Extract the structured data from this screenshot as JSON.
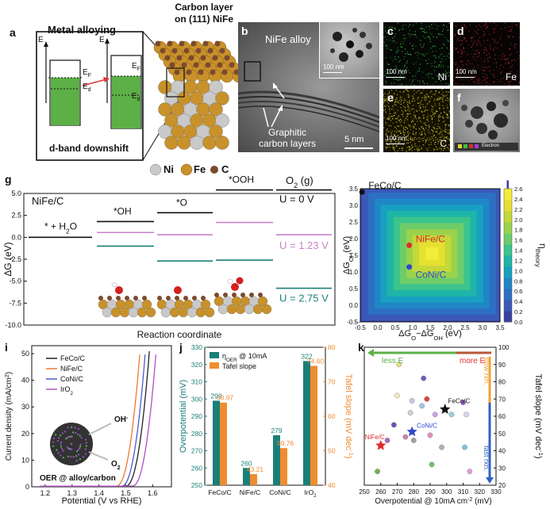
{
  "panels": {
    "a": {
      "letter": "a",
      "title": "Metal alloying",
      "axis_e": "E",
      "ef": "E",
      "ef_sub": "F",
      "ed": "E",
      "ed_sub": "d",
      "caption": "d-band downshift",
      "carbon_title_1": "Carbon layer",
      "carbon_title_2": "on (111) NiFe",
      "legend": {
        "ni": "Ni",
        "fe": "Fe",
        "c": "C"
      }
    },
    "b": {
      "letter": "b",
      "label_alloy": "NiFe alloy",
      "label_layers_1": "Graphitic",
      "label_layers_2": "carbon layers",
      "scale": "5 nm",
      "inset_scale": "100 nm"
    },
    "c": {
      "letter": "c",
      "element": "Ni",
      "scale": "100 nm"
    },
    "d": {
      "letter": "d",
      "element": "Fe",
      "scale": "100 nm"
    },
    "e": {
      "letter": "e",
      "element": "C",
      "scale": "100 nm"
    },
    "f": {
      "letter": "f",
      "legend_text": "Electron",
      "scale": "100 nm"
    },
    "g": {
      "letter": "g"
    },
    "h": {
      "letter": "h"
    },
    "i": {
      "letter": "i",
      "annotation_oh": "OH",
      "annotation_oh_sup": "-",
      "annotation_o2": "O",
      "annotation_o2_sub": "2",
      "annotation_main": "OER @ alloy/carbon"
    },
    "j": {
      "letter": "j"
    },
    "k": {
      "letter": "k",
      "less_e": "less E",
      "more_e": "more E",
      "slow": "slow rxn.",
      "fast": "fast rxn."
    }
  },
  "colors": {
    "green_band": "#5cb046",
    "fe_atom": "#c8912a",
    "ni_atom": "#c9c9c9",
    "c_atom": "#7b4a2e",
    "teal": "#1a7f78",
    "orange": "#f08c30",
    "pink": "#cc80cc",
    "red": "#e02b2b",
    "blue": "#2f49c8",
    "arrow_green": "#5cb046",
    "arrow_red": "#e03030",
    "arrow_orange": "#f0a030",
    "arrow_blue": "#3060c0"
  },
  "chart_data": [
    {
      "panel": "g",
      "type": "line",
      "title": "",
      "xlabel": "Reaction coordinate",
      "ylabel": "ΔG (eV)",
      "ylim": [
        -10.0,
        5.0
      ],
      "yticks": [
        "5.0",
        "2.5",
        "0.0",
        "-2.5",
        "-5.0",
        "-7.5",
        "-10.0"
      ],
      "system_label": "NiFe/C",
      "o2_label": "O",
      "o2_sub": "2",
      "o2_suffix": " (g)",
      "steps": [
        {
          "label": "* + H",
          "label_sub": "2",
          "label_tail": "O"
        },
        {
          "label": "*OH",
          "label_sub": "",
          "label_tail": ""
        },
        {
          "label": "*O",
          "label_sub": "",
          "label_tail": ""
        },
        {
          "label": "*OOH",
          "label_sub": "",
          "label_tail": ""
        },
        {
          "label": "O",
          "label_sub": "2",
          "label_tail": " (g)"
        }
      ],
      "series": [
        {
          "name": "U = 0 V",
          "color": "#111111",
          "values": [
            0.0,
            1.8,
            2.8,
            5.4,
            5.4
          ]
        },
        {
          "name": "U = 1.23 V",
          "color": "#cc80cc",
          "values": [
            0.0,
            0.55,
            0.3,
            1.7,
            0.3
          ]
        },
        {
          "name": "U = 2.75 V",
          "color": "#1a7f78",
          "values": [
            0.0,
            -1.0,
            -2.7,
            -2.6,
            -5.8
          ]
        }
      ]
    },
    {
      "panel": "h",
      "type": "heatmap",
      "title": "",
      "xlabel": "ΔG",
      "xlabel_sub1": "O",
      "xlabel_mid": "−ΔG",
      "xlabel_sub2": "OH",
      "xlabel_tail": " (eV)",
      "ylabel": "ΔG",
      "ylabel_sub": "OH",
      "ylabel_tail": "(eV)",
      "xlim": [
        -0.5,
        3.5
      ],
      "ylim": [
        -0.5,
        3.5
      ],
      "xticks": [
        "-0.5",
        "0.0",
        "0.5",
        "1.0",
        "1.5",
        "2.0",
        "2.5",
        "3.0",
        "3.5"
      ],
      "yticks": [
        "3.5",
        "3.0",
        "2.5",
        "2.0",
        "1.5",
        "1.0",
        "0.5",
        "0.0",
        "-0.5"
      ],
      "colorbar_label": "η",
      "colorbar_sub": "theory",
      "colorbar_ticks": [
        "2.6",
        "2.4",
        "2.2",
        "2.0",
        "1.8",
        "1.6",
        "1.4",
        "1.2",
        "1.0",
        "0.8",
        "0.6",
        "0.4",
        "0.2",
        "0.0"
      ],
      "points": [
        {
          "name": "FeCo/C",
          "x": -0.45,
          "y": 3.4,
          "color": "#111111"
        },
        {
          "name": "NiFe/C",
          "x": 0.9,
          "y": 1.8,
          "color": "#e02b2b"
        },
        {
          "name": "CoNi/C",
          "x": 0.9,
          "y": 1.15,
          "color": "#2f49c8"
        }
      ]
    },
    {
      "panel": "i",
      "type": "line",
      "title": "",
      "xlabel": "Potential (V vs RHE)",
      "ylabel": "Current density (mA/cm",
      "ylabel_sup": "2",
      "ylabel_tail": ")",
      "xlim": [
        1.15,
        1.67
      ],
      "ylim": [
        0,
        53
      ],
      "xticks": [
        "1.2",
        "1.3",
        "1.4",
        "1.5",
        "1.6"
      ],
      "yticks": [
        "0",
        "10",
        "20",
        "30",
        "40",
        "50"
      ],
      "series": [
        {
          "name": "FeCo/C",
          "color": "#222222",
          "onset": 1.5
        },
        {
          "name": "NiFe/C",
          "color": "#f07830",
          "onset": 1.465
        },
        {
          "name": "CoNi/C",
          "color": "#4a5ad0",
          "onset": 1.485
        },
        {
          "name": "IrO",
          "sub": "2",
          "color": "#b050c0",
          "onset": 1.525
        }
      ]
    },
    {
      "panel": "j",
      "type": "bar",
      "title": "",
      "xlabel": "",
      "ylabel": "Overpotential (mV)",
      "ylabel2": "Tafel slope (mV dec",
      "ylabel2_sup": "-1",
      "ylabel2_tail": ")",
      "categories": [
        "FeCo/C",
        "NiFe/C",
        "CoNi/C",
        "IrO2"
      ],
      "category_sub": [
        "",
        "",
        "",
        "2"
      ],
      "category_main": [
        "FeCo/C",
        "NiFe/C",
        "CoNi/C",
        "IrO"
      ],
      "ylim": [
        250,
        330
      ],
      "ylim2": [
        40,
        80
      ],
      "yticks": [
        "330",
        "320",
        "310",
        "300",
        "290",
        "280",
        "270",
        "260",
        "250"
      ],
      "yticks2": [
        "80",
        "70",
        "60",
        "50",
        "40"
      ],
      "legend_eta": "η",
      "legend_eta_sub": "OER",
      "legend_eta_tail": " @ 10mA",
      "series": [
        {
          "name": "η OER @ 10mA",
          "axis": "left",
          "color": "#1a7f78",
          "values": [
            299,
            260,
            279,
            322
          ],
          "labels": [
            "299",
            "260",
            "279",
            "322"
          ]
        },
        {
          "name": "Tafel slope",
          "axis": "right",
          "color": "#f08c30",
          "values": [
            63.97,
            43.21,
            50.76,
            74.6
          ],
          "labels": [
            "63.97",
            "43.21",
            "50.76",
            "74.60"
          ]
        }
      ]
    },
    {
      "panel": "k",
      "type": "scatter",
      "title": "",
      "xlabel": "Overpotential @ 10mA cm",
      "xlabel_sup": "-2",
      "xlabel_tail": " (mV)",
      "ylabel": "Tafel slope (mV dec",
      "ylabel_sup": "-1",
      "ylabel_tail": ")",
      "xlim": [
        250,
        330
      ],
      "ylim": [
        20,
        100
      ],
      "xticks": [
        "250",
        "260",
        "270",
        "280",
        "290",
        "300",
        "310",
        "320",
        "330"
      ],
      "yticks": [
        "100",
        "90",
        "80",
        "70",
        "60",
        "50",
        "40",
        "30",
        "20"
      ],
      "highlight": [
        {
          "name": "FeCo/C",
          "x": 299,
          "y": 64,
          "color": "#111111"
        },
        {
          "name": "NiFe/C",
          "x": 260,
          "y": 43,
          "color": "#e02b2b"
        },
        {
          "name": "CoNi/C",
          "x": 279,
          "y": 51,
          "color": "#2f49c8"
        }
      ],
      "points": [
        {
          "x": 258,
          "y": 28,
          "color": "#6fb24a"
        },
        {
          "x": 264,
          "y": 46,
          "color": "#a070c0"
        },
        {
          "x": 268,
          "y": 55,
          "color": "#7050b0"
        },
        {
          "x": 270,
          "y": 72,
          "color": "#f3e8c0"
        },
        {
          "x": 271,
          "y": 90,
          "color": "#e8e080"
        },
        {
          "x": 275,
          "y": 48,
          "color": "#d080b0"
        },
        {
          "x": 278,
          "y": 62,
          "color": "#d0d0d0"
        },
        {
          "x": 279,
          "y": 69,
          "color": "#c8c8e0"
        },
        {
          "x": 280,
          "y": 46,
          "color": "#a0a0a0"
        },
        {
          "x": 285,
          "y": 66,
          "color": "#a0c8e8"
        },
        {
          "x": 286,
          "y": 82,
          "color": "#6860c0"
        },
        {
          "x": 288,
          "y": 70,
          "color": "#e04040"
        },
        {
          "x": 290,
          "y": 49,
          "color": "#e090c0"
        },
        {
          "x": 291,
          "y": 32,
          "color": "#70c070"
        },
        {
          "x": 293,
          "y": 61,
          "color": "#d0a0e0"
        },
        {
          "x": 297,
          "y": 42,
          "color": "#b0b0b0"
        },
        {
          "x": 303,
          "y": 61,
          "color": "#a0d0d8"
        },
        {
          "x": 310,
          "y": 68,
          "color": "#a060d0"
        },
        {
          "x": 311,
          "y": 42,
          "color": "#80c0e0"
        },
        {
          "x": 312,
          "y": 61,
          "color": "#e0d0f0"
        },
        {
          "x": 314,
          "y": 28,
          "color": "#e0a0e0"
        }
      ]
    }
  ]
}
